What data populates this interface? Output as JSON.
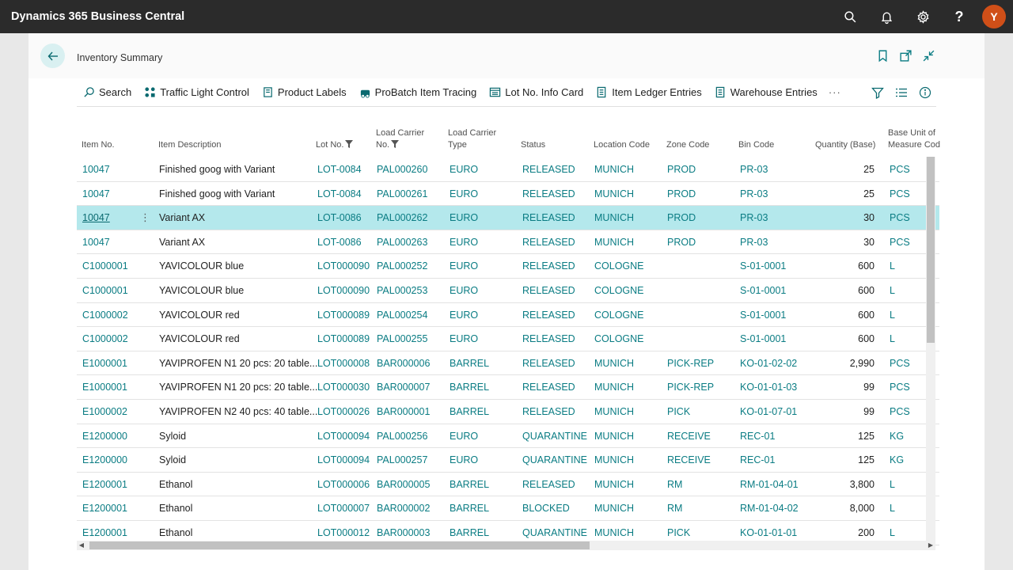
{
  "app": {
    "title": "Dynamics 365 Business Central",
    "user_initial": "Y",
    "help_label": "?"
  },
  "page": {
    "title": "Inventory Summary"
  },
  "actions": [
    {
      "label": "Search",
      "icon": "search-icon"
    },
    {
      "label": "Traffic Light Control",
      "icon": "traffic-light-icon"
    },
    {
      "label": "Product Labels",
      "icon": "label-icon"
    },
    {
      "label": "ProBatch Item Tracing",
      "icon": "tracing-icon"
    },
    {
      "label": "Lot No. Info Card",
      "icon": "card-icon"
    },
    {
      "label": "Item Ledger Entries",
      "icon": "ledger-icon"
    },
    {
      "label": "Warehouse Entries",
      "icon": "warehouse-icon"
    }
  ],
  "more_label": "···",
  "columns": {
    "item_no": "Item No.",
    "desc": "Item Description",
    "lot": "Lot No.",
    "carrier_no_1": "Load Carrier",
    "carrier_no_2": "No.",
    "carrier_type_1": "Load Carrier",
    "carrier_type_2": "Type",
    "status": "Status",
    "location": "Location Code",
    "zone": "Zone Code",
    "bin": "Bin Code",
    "qty": "Quantity (Base)",
    "uom_1": "Base Unit of",
    "uom_2": "Measure Cod"
  },
  "rows": [
    {
      "item": "10047",
      "desc": "Finished goog with Variant",
      "lot": "LOT-0084",
      "carrier": "PAL000260",
      "type": "EURO",
      "status": "RELEASED",
      "location": "MUNICH",
      "zone": "PROD",
      "bin": "PR-03",
      "qty": "25",
      "uom": "PCS"
    },
    {
      "item": "10047",
      "desc": "Finished goog with Variant",
      "lot": "LOT-0084",
      "carrier": "PAL000261",
      "type": "EURO",
      "status": "RELEASED",
      "location": "MUNICH",
      "zone": "PROD",
      "bin": "PR-03",
      "qty": "25",
      "uom": "PCS"
    },
    {
      "item": "10047",
      "desc": "Variant AX",
      "lot": "LOT-0086",
      "carrier": "PAL000262",
      "type": "EURO",
      "status": "RELEASED",
      "location": "MUNICH",
      "zone": "PROD",
      "bin": "PR-03",
      "qty": "30",
      "uom": "PCS"
    },
    {
      "item": "10047",
      "desc": "Variant AX",
      "lot": "LOT-0086",
      "carrier": "PAL000263",
      "type": "EURO",
      "status": "RELEASED",
      "location": "MUNICH",
      "zone": "PROD",
      "bin": "PR-03",
      "qty": "30",
      "uom": "PCS"
    },
    {
      "item": "C1000001",
      "desc": "YAVICOLOUR blue",
      "lot": "LOT000090",
      "carrier": "PAL000252",
      "type": "EURO",
      "status": "RELEASED",
      "location": "COLOGNE",
      "zone": "",
      "bin": "S-01-0001",
      "qty": "600",
      "uom": "L"
    },
    {
      "item": "C1000001",
      "desc": "YAVICOLOUR blue",
      "lot": "LOT000090",
      "carrier": "PAL000253",
      "type": "EURO",
      "status": "RELEASED",
      "location": "COLOGNE",
      "zone": "",
      "bin": "S-01-0001",
      "qty": "600",
      "uom": "L"
    },
    {
      "item": "C1000002",
      "desc": "YAVICOLOUR red",
      "lot": "LOT000089",
      "carrier": "PAL000254",
      "type": "EURO",
      "status": "RELEASED",
      "location": "COLOGNE",
      "zone": "",
      "bin": "S-01-0001",
      "qty": "600",
      "uom": "L"
    },
    {
      "item": "C1000002",
      "desc": "YAVICOLOUR red",
      "lot": "LOT000089",
      "carrier": "PAL000255",
      "type": "EURO",
      "status": "RELEASED",
      "location": "COLOGNE",
      "zone": "",
      "bin": "S-01-0001",
      "qty": "600",
      "uom": "L"
    },
    {
      "item": "E1000001",
      "desc": "YAVIPROFEN N1 20 pcs: 20 table...",
      "lot": "LOT000008",
      "carrier": "BAR000006",
      "type": "BARREL",
      "status": "RELEASED",
      "location": "MUNICH",
      "zone": "PICK-REP",
      "bin": "KO-01-02-02",
      "qty": "2,990",
      "uom": "PCS"
    },
    {
      "item": "E1000001",
      "desc": "YAVIPROFEN N1 20 pcs: 20 table...",
      "lot": "LOT000030",
      "carrier": "BAR000007",
      "type": "BARREL",
      "status": "RELEASED",
      "location": "MUNICH",
      "zone": "PICK-REP",
      "bin": "KO-01-01-03",
      "qty": "99",
      "uom": "PCS"
    },
    {
      "item": "E1000002",
      "desc": "YAVIPROFEN N2 40 pcs: 40 table...",
      "lot": "LOT000026",
      "carrier": "BAR000001",
      "type": "BARREL",
      "status": "RELEASED",
      "location": "MUNICH",
      "zone": "PICK",
      "bin": "KO-01-07-01",
      "qty": "99",
      "uom": "PCS"
    },
    {
      "item": "E1200000",
      "desc": "Syloid",
      "lot": "LOT000094",
      "carrier": "PAL000256",
      "type": "EURO",
      "status": "QUARANTINE",
      "location": "MUNICH",
      "zone": "RECEIVE",
      "bin": "REC-01",
      "qty": "125",
      "uom": "KG"
    },
    {
      "item": "E1200000",
      "desc": "Syloid",
      "lot": "LOT000094",
      "carrier": "PAL000257",
      "type": "EURO",
      "status": "QUARANTINE",
      "location": "MUNICH",
      "zone": "RECEIVE",
      "bin": "REC-01",
      "qty": "125",
      "uom": "KG"
    },
    {
      "item": "E1200001",
      "desc": "Ethanol",
      "lot": "LOT000006",
      "carrier": "BAR000005",
      "type": "BARREL",
      "status": "RELEASED",
      "location": "MUNICH",
      "zone": "RM",
      "bin": "RM-01-04-01",
      "qty": "3,800",
      "uom": "L"
    },
    {
      "item": "E1200001",
      "desc": "Ethanol",
      "lot": "LOT000007",
      "carrier": "BAR000002",
      "type": "BARREL",
      "status": "BLOCKED",
      "location": "MUNICH",
      "zone": "RM",
      "bin": "RM-01-04-02",
      "qty": "8,000",
      "uom": "L"
    },
    {
      "item": "E1200001",
      "desc": "Ethanol",
      "lot": "LOT000012",
      "carrier": "BAR000003",
      "type": "BARREL",
      "status": "QUARANTINE",
      "location": "MUNICH",
      "zone": "PICK",
      "bin": "KO-01-01-01",
      "qty": "200",
      "uom": "L"
    }
  ],
  "selected_row": 2,
  "colors": {
    "accent": "#0a7c83",
    "topbar": "#2b2b2b",
    "selected_row": "#b4e8ec",
    "avatar": "#d04f18"
  }
}
